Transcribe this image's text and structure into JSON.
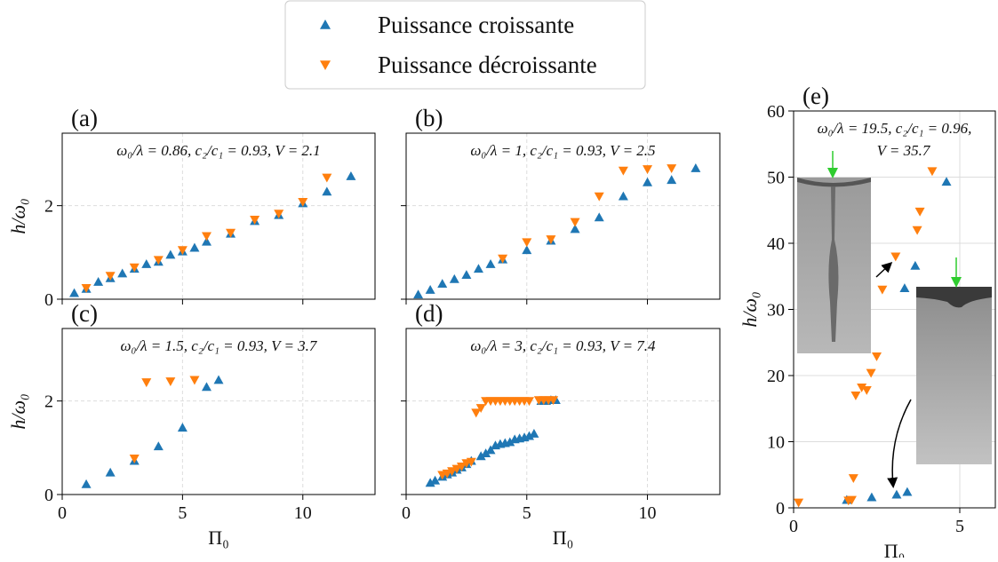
{
  "chart_data": [
    {
      "type": "scatter",
      "label": "(a)",
      "annotation": "ω₀/λ = 0.86, c₂/c₁ = 0.93, V = 2.1",
      "ylabel": "h/ω₀",
      "xlim": [
        0,
        13
      ],
      "ylim": [
        0,
        3.55
      ],
      "xticks": [
        0,
        5,
        10
      ],
      "yticks": [
        0,
        2
      ],
      "grid": true,
      "grid_style": "dashed",
      "series": [
        {
          "name": "Puissance croissante",
          "color": "#1f77b4",
          "marker": "triangle-up",
          "x": [
            0.5,
            1,
            1.5,
            2,
            2.5,
            3,
            3.5,
            4,
            4.5,
            5,
            5.5,
            6,
            7,
            8,
            9,
            10,
            11,
            12
          ],
          "values": [
            0.13,
            0.22,
            0.37,
            0.45,
            0.55,
            0.65,
            0.75,
            0.8,
            0.95,
            1.02,
            1.1,
            1.23,
            1.4,
            1.67,
            1.8,
            2.05,
            2.3,
            2.63
          ]
        },
        {
          "name": "Puissance décroissante",
          "color": "#ff7f0e",
          "marker": "triangle-down",
          "x": [
            1,
            2,
            3,
            4,
            5,
            6,
            7,
            8,
            9,
            10,
            11
          ],
          "values": [
            0.24,
            0.5,
            0.68,
            0.84,
            1.05,
            1.35,
            1.42,
            1.7,
            1.83,
            2.08,
            2.6
          ]
        }
      ]
    },
    {
      "type": "scatter",
      "label": "(b)",
      "annotation": "ω₀/λ = 1, c₂/c₁ = 0.93, V = 2.5",
      "xlim": [
        0,
        13
      ],
      "ylim": [
        0,
        3.55
      ],
      "xticks": [
        0,
        5,
        10
      ],
      "yticks": [
        0,
        2
      ],
      "grid": true,
      "grid_style": "dashed",
      "series": [
        {
          "color": "#1f77b4",
          "marker": "triangle-up",
          "x": [
            0.5,
            1,
            1.5,
            2,
            2.5,
            3,
            3.5,
            4,
            5,
            6,
            7,
            8,
            9,
            10,
            11,
            12
          ],
          "values": [
            0.1,
            0.2,
            0.33,
            0.43,
            0.52,
            0.65,
            0.75,
            0.85,
            1.05,
            1.25,
            1.5,
            1.75,
            2.2,
            2.5,
            2.55,
            2.8
          ]
        },
        {
          "color": "#ff7f0e",
          "marker": "triangle-down",
          "x": [
            4,
            5,
            6,
            7,
            8,
            9,
            10,
            11
          ],
          "values": [
            0.87,
            1.22,
            1.28,
            1.65,
            2.2,
            2.75,
            2.78,
            2.8
          ]
        }
      ]
    },
    {
      "type": "scatter",
      "label": "(c)",
      "annotation": "ω₀/λ = 1.5, c₂/c₁ = 0.93, V = 3.7",
      "xlabel": "Π₀",
      "ylabel": "h/ω₀",
      "xlim": [
        0,
        13
      ],
      "ylim": [
        0,
        3.55
      ],
      "xticks": [
        0,
        5,
        10
      ],
      "yticks": [
        0,
        2
      ],
      "grid": true,
      "grid_style": "dashed",
      "series": [
        {
          "color": "#1f77b4",
          "marker": "triangle-up",
          "x": [
            1,
            2,
            3,
            4,
            5,
            6,
            6.5
          ],
          "values": [
            0.22,
            0.47,
            0.72,
            1.03,
            1.43,
            2.3,
            2.45
          ]
        },
        {
          "color": "#ff7f0e",
          "marker": "triangle-down",
          "x": [
            3,
            3.5,
            4.5,
            5.5
          ],
          "values": [
            0.77,
            2.4,
            2.42,
            2.45
          ]
        }
      ]
    },
    {
      "type": "scatter",
      "label": "(d)",
      "annotation": "ω₀/λ = 3, c₂/c₁ = 0.93, V = 7.4",
      "xlabel": "Π₀",
      "xlim": [
        0,
        13
      ],
      "ylim": [
        0,
        3.55
      ],
      "xticks": [
        0,
        5,
        10
      ],
      "yticks": [
        0,
        2
      ],
      "grid": true,
      "grid_style": "dashed",
      "series": [
        {
          "color": "#1f77b4",
          "marker": "triangle-up",
          "x": [
            1,
            1.2,
            1.5,
            1.7,
            1.9,
            2.1,
            2.3,
            2.5,
            2.7,
            3.1,
            3.3,
            3.5,
            3.7,
            3.9,
            4.1,
            4.3,
            4.5,
            4.7,
            4.9,
            5.1,
            5.3,
            5.6,
            5.8,
            6.0,
            6.2
          ],
          "values": [
            0.25,
            0.3,
            0.38,
            0.43,
            0.47,
            0.53,
            0.58,
            0.65,
            0.72,
            0.82,
            0.88,
            0.95,
            1.05,
            1.08,
            1.1,
            1.12,
            1.18,
            1.2,
            1.22,
            1.25,
            1.3,
            2.0,
            2.0,
            2.02,
            2.02
          ]
        },
        {
          "color": "#ff7f0e",
          "marker": "triangle-down",
          "x": [
            1.5,
            1.7,
            1.9,
            2.1,
            2.3,
            2.5,
            2.7,
            2.9,
            3.1,
            3.3,
            3.5,
            3.7,
            3.9,
            4.1,
            4.3,
            4.5,
            4.7,
            4.9,
            5.1,
            5.5,
            5.7,
            5.9,
            6.1
          ],
          "values": [
            0.42,
            0.45,
            0.5,
            0.55,
            0.6,
            0.67,
            0.7,
            1.75,
            1.85,
            2.0,
            2.0,
            2.0,
            2.0,
            2.0,
            2.0,
            2.0,
            2.0,
            2.0,
            2.0,
            2.02,
            2.02,
            2.02,
            2.02
          ]
        }
      ]
    },
    {
      "type": "scatter",
      "label": "(e)",
      "annotation": [
        "ω₀/λ = 19.5, c₂/c₁ = 0.96,",
        "V = 35.7"
      ],
      "xlabel": "Π₀",
      "ylabel": "h/ω₀",
      "xlim": [
        0,
        6.07
      ],
      "ylim": [
        0,
        60
      ],
      "xticks": [
        0,
        5
      ],
      "yticks": [
        0,
        10,
        20,
        30,
        40,
        50,
        60
      ],
      "grid": true,
      "grid_style": "solid",
      "series": [
        {
          "color": "#1f77b4",
          "marker": "triangle-up",
          "x": [
            1.6,
            2.35,
            3.1,
            3.42,
            3.34,
            3.66,
            4.6
          ],
          "values": [
            1.2,
            1.6,
            2.0,
            2.4,
            33.2,
            36.6,
            49.3
          ]
        },
        {
          "color": "#ff7f0e",
          "marker": "triangle-down",
          "x": [
            0.15,
            1.65,
            1.75,
            1.8,
            1.87,
            2.05,
            2.2,
            2.33,
            2.5,
            2.67,
            3.07,
            3.72,
            3.8,
            4.17
          ],
          "values": [
            0.8,
            1.1,
            1.2,
            4.5,
            17,
            18.2,
            17.8,
            20.4,
            22.9,
            33,
            38,
            42,
            44.8,
            50.9
          ]
        }
      ]
    }
  ]
}
